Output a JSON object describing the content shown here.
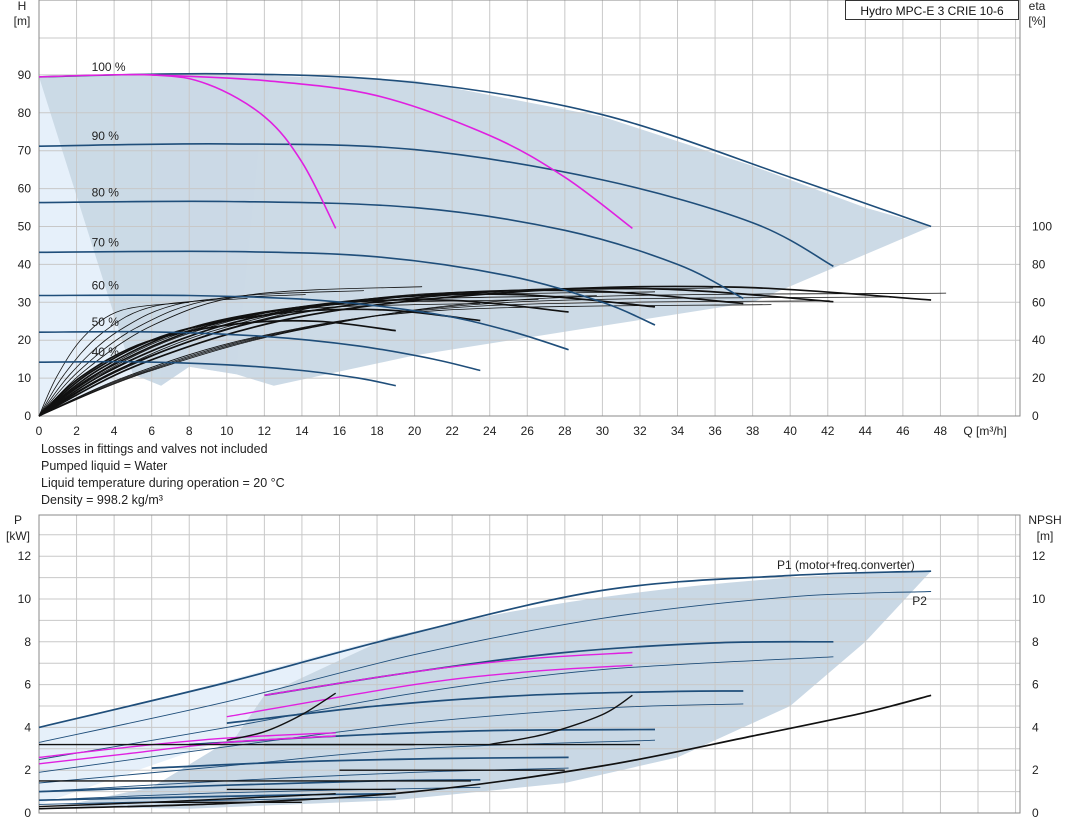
{
  "title": "Hydro MPC-E 3 CRIE 10-6",
  "notes": [
    "Losses in fittings and valves not included",
    "Pumped liquid = Water",
    "Liquid temperature during operation = 20 °C",
    "Density = 998.2 kg/m³"
  ],
  "chart_data": [
    {
      "type": "line",
      "title": "Hydro MPC-E 3 CRIE 10-6",
      "xlabel": "Q [m³/h]",
      "ylabel": "H [m]",
      "y2label": "eta [%]",
      "xlim": [
        0,
        50
      ],
      "ylim": [
        0,
        100
      ],
      "y2lim": [
        0,
        200
      ],
      "xticks": [
        0,
        2,
        4,
        6,
        8,
        10,
        12,
        14,
        16,
        18,
        20,
        22,
        24,
        26,
        28,
        30,
        32,
        34,
        36,
        38,
        40,
        42,
        44,
        46,
        48
      ],
      "yticks": [
        0,
        10,
        20,
        30,
        40,
        50,
        60,
        70,
        80,
        90
      ],
      "y2ticks": [
        0,
        20,
        40,
        60,
        80,
        100
      ],
      "grid": true,
      "envelope": [
        [
          0,
          89.5
        ],
        [
          6,
          90
        ],
        [
          11,
          90
        ],
        [
          20,
          88.5
        ],
        [
          30,
          79
        ],
        [
          38,
          66
        ],
        [
          44,
          55
        ],
        [
          47.5,
          50
        ],
        [
          38,
          30
        ],
        [
          29,
          23
        ],
        [
          20,
          16
        ],
        [
          12.5,
          8
        ],
        [
          10.5,
          11
        ],
        [
          8,
          13
        ],
        [
          6.5,
          8
        ],
        [
          5,
          11
        ]
      ],
      "speed_curves": [
        {
          "name": "100 %",
          "q_max": 47.5,
          "h0": 89.5,
          "points": [
            [
              0,
              89.5
            ],
            [
              10,
              90.3
            ],
            [
              20,
              88
            ],
            [
              30,
              79.5
            ],
            [
              40,
              63
            ],
            [
              47.5,
              50
            ]
          ]
        },
        {
          "name": "90 %",
          "q_max": 42.3,
          "h0": 71.2,
          "points": [
            [
              0,
              71.2
            ],
            [
              10,
              71.8
            ],
            [
              20,
              70.3
            ],
            [
              30,
              62.3
            ],
            [
              38,
              51
            ],
            [
              42.3,
              39.5
            ]
          ]
        },
        {
          "name": "80 %",
          "q_max": 37.5,
          "h0": 56.3,
          "points": [
            [
              0,
              56.3
            ],
            [
              10,
              56.6
            ],
            [
              20,
              55
            ],
            [
              28,
              49
            ],
            [
              34,
              40
            ],
            [
              37.5,
              31
            ]
          ]
        },
        {
          "name": "70 %",
          "q_max": 32.8,
          "h0": 43.2,
          "points": [
            [
              0,
              43.2
            ],
            [
              10,
              43.4
            ],
            [
              18,
              42
            ],
            [
              25,
              37
            ],
            [
              30,
              30
            ],
            [
              32.8,
              24
            ]
          ]
        },
        {
          "name": "60 %",
          "q_max": 28.2,
          "h0": 31.8,
          "points": [
            [
              0,
              31.8
            ],
            [
              8,
              31.8
            ],
            [
              15,
              30.5
            ],
            [
              21,
              27
            ],
            [
              25,
              22.5
            ],
            [
              28.2,
              17.5
            ]
          ]
        },
        {
          "name": "50 %",
          "q_max": 23.5,
          "h0": 22.1,
          "points": [
            [
              0,
              22.1
            ],
            [
              6,
              22.2
            ],
            [
              12,
              21
            ],
            [
              17,
              18.5
            ],
            [
              21,
              15
            ],
            [
              23.5,
              12
            ]
          ]
        },
        {
          "name": "40 %",
          "q_max": 19,
          "h0": 14.2,
          "points": [
            [
              0,
              14.2
            ],
            [
              5,
              14.3
            ],
            [
              10,
              13.5
            ],
            [
              14,
              12
            ],
            [
              17,
              10
            ],
            [
              19,
              8
            ]
          ]
        }
      ],
      "magenta_curves": [
        {
          "points": [
            [
              0,
              89.5
            ],
            [
              6,
              90
            ],
            [
              9,
              87.5
            ],
            [
              12,
              79
            ],
            [
              14,
              67
            ],
            [
              15.8,
              49.5
            ]
          ]
        },
        {
          "points": [
            [
              6,
              90
            ],
            [
              12,
              88.5
            ],
            [
              18,
              84.5
            ],
            [
              24,
              74
            ],
            [
              28,
              63
            ],
            [
              31.6,
              49.5
            ]
          ]
        }
      ],
      "eta_curves": [
        {
          "q_end": 19,
          "peak": 50
        },
        {
          "q_end": 23.5,
          "peak": 56
        },
        {
          "q_end": 28.2,
          "peak": 61
        },
        {
          "q_end": 32.8,
          "peak": 64
        },
        {
          "q_end": 37.5,
          "peak": 66
        },
        {
          "q_end": 42.3,
          "peak": 67
        },
        {
          "q_end": 47.5,
          "peak": 68
        }
      ]
    },
    {
      "type": "line",
      "xlabel": "Q [m³/h]",
      "ylabel": "P [kW]",
      "y2label": "NPSH [m]",
      "xlim": [
        0,
        50
      ],
      "ylim": [
        0,
        13
      ],
      "yticks": [
        0,
        2,
        4,
        6,
        8,
        10,
        12
      ],
      "y2ticks": [
        0,
        2,
        4,
        6,
        8,
        10,
        12
      ],
      "grid": true,
      "series_labels": [
        "P1 (motor+freq.converter)",
        "P2"
      ],
      "p1_curves": [
        {
          "q_max": 47.5,
          "points": [
            [
              0,
              4
            ],
            [
              10,
              6.1
            ],
            [
              19,
              8.2
            ],
            [
              30,
              10.4
            ],
            [
              40,
              11.1
            ],
            [
              47.5,
              11.3
            ]
          ]
        },
        {
          "q_max": 42.3,
          "points": [
            [
              12,
              5.5
            ],
            [
              20,
              6.6
            ],
            [
              28,
              7.5
            ],
            [
              36,
              7.95
            ],
            [
              42.3,
              8
            ]
          ]
        },
        {
          "q_max": 37.5,
          "points": [
            [
              10,
              4.2
            ],
            [
              18,
              5.0
            ],
            [
              26,
              5.5
            ],
            [
              34,
              5.68
            ],
            [
              37.5,
              5.7
            ]
          ]
        },
        {
          "q_max": 32.8,
          "points": [
            [
              8,
              3.2
            ],
            [
              16,
              3.6
            ],
            [
              24,
              3.85
            ],
            [
              32.8,
              3.9
            ]
          ]
        },
        {
          "q_max": 28.2,
          "points": [
            [
              6,
              2.1
            ],
            [
              14,
              2.4
            ],
            [
              22,
              2.55
            ],
            [
              28.2,
              2.6
            ]
          ]
        },
        {
          "q_max": 23.5,
          "points": [
            [
              0,
              1.0
            ],
            [
              10,
              1.3
            ],
            [
              18,
              1.5
            ],
            [
              23.5,
              1.55
            ]
          ]
        },
        {
          "q_max": 19,
          "points": [
            [
              0,
              0.6
            ],
            [
              8,
              0.75
            ],
            [
              14,
              0.85
            ],
            [
              19,
              0.9
            ]
          ]
        }
      ],
      "p2_curves": [
        {
          "q_max": 47.5,
          "points": [
            [
              0,
              3.3
            ],
            [
              10,
              5.2
            ],
            [
              20,
              7.4
            ],
            [
              30,
              9.1
            ],
            [
              40,
              10.1
            ],
            [
              47.5,
              10.35
            ]
          ]
        },
        {
          "q_max": 42.3,
          "points": [
            [
              0,
              2.5
            ],
            [
              10,
              4.0
            ],
            [
              20,
              5.6
            ],
            [
              30,
              6.7
            ],
            [
              42.3,
              7.3
            ]
          ]
        },
        {
          "q_max": 37.5,
          "points": [
            [
              0,
              1.9
            ],
            [
              10,
              3.1
            ],
            [
              20,
              4.2
            ],
            [
              30,
              4.9
            ],
            [
              37.5,
              5.1
            ]
          ]
        },
        {
          "q_max": 32.8,
          "points": [
            [
              0,
              1.4
            ],
            [
              10,
              2.2
            ],
            [
              20,
              3.0
            ],
            [
              32.8,
              3.4
            ]
          ]
        },
        {
          "q_max": 28.2,
          "points": [
            [
              0,
              1.0
            ],
            [
              10,
              1.5
            ],
            [
              20,
              1.9
            ],
            [
              28.2,
              2.1
            ]
          ]
        },
        {
          "q_max": 23.5,
          "points": [
            [
              0,
              0.6
            ],
            [
              10,
              0.95
            ],
            [
              23.5,
              1.2
            ]
          ]
        },
        {
          "q_max": 19,
          "points": [
            [
              0,
              0.4
            ],
            [
              10,
              0.6
            ],
            [
              19,
              0.75
            ]
          ]
        }
      ],
      "magenta_power": [
        {
          "points": [
            [
              0,
              2.6
            ],
            [
              5,
              3.1
            ],
            [
              10,
              3.5
            ],
            [
              15.8,
              3.75
            ]
          ]
        },
        {
          "points": [
            [
              0,
              2.3
            ],
            [
              5,
              2.8
            ],
            [
              10,
              3.3
            ],
            [
              15.8,
              3.6
            ]
          ]
        },
        {
          "points": [
            [
              12,
              5.5
            ],
            [
              20,
              6.6
            ],
            [
              26,
              7.2
            ],
            [
              31.6,
              7.5
            ]
          ]
        },
        {
          "points": [
            [
              10,
              4.5
            ],
            [
              20,
              6.0
            ],
            [
              26,
              6.6
            ],
            [
              31.6,
              6.9
            ]
          ]
        }
      ],
      "npsh_curve": {
        "points": [
          [
            0,
            0.2
          ],
          [
            10,
            0.45
          ],
          [
            20,
            1.0
          ],
          [
            30,
            2.2
          ],
          [
            38,
            3.6
          ],
          [
            44,
            4.7
          ],
          [
            47.5,
            5.5
          ]
        ]
      },
      "npsh_short": [
        {
          "points": [
            [
              0,
              0.3
            ],
            [
              6,
              0.5
            ],
            [
              11,
              0.7
            ],
            [
              15.8,
              0.9
            ]
          ]
        },
        {
          "points": [
            [
              10,
              3.4
            ],
            [
              12,
              3.8
            ],
            [
              14,
              4.6
            ],
            [
              15.8,
              5.6
            ]
          ]
        },
        {
          "points": [
            [
              24,
              3.2
            ],
            [
              27,
              3.7
            ],
            [
              30,
              4.6
            ],
            [
              31.6,
              5.5
            ]
          ]
        }
      ]
    }
  ]
}
